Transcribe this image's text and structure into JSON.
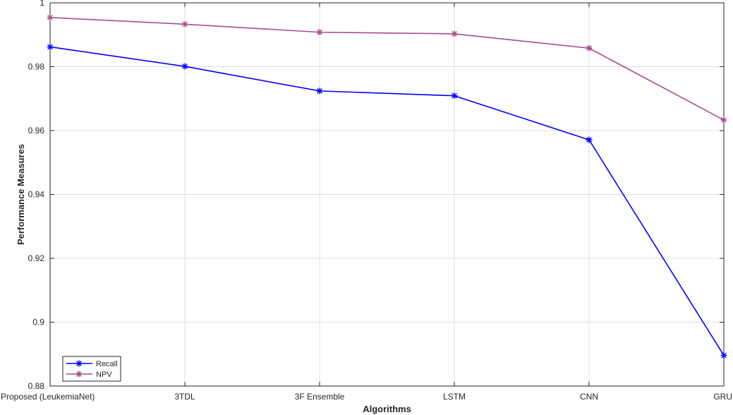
{
  "chart_data": {
    "type": "line",
    "categories": [
      "Proposed (LeukemiaNet)",
      "3TDL",
      "3F Ensemble",
      "LSTM",
      "CNN",
      "GRU"
    ],
    "series": [
      {
        "name": "Recall",
        "values": [
          0.9862,
          0.9801,
          0.9724,
          0.9709,
          0.9571,
          0.8896
        ],
        "color": "#0000ff",
        "marker": "asterisk"
      },
      {
        "name": "NPV",
        "values": [
          0.9954,
          0.9933,
          0.9908,
          0.9903,
          0.9858,
          0.9633
        ],
        "color": "#a64d8c",
        "marker": "asterisk"
      }
    ],
    "title": "",
    "xlabel": "Algorithms",
    "ylabel": "Performance Measures",
    "ylim": [
      0.88,
      1.0
    ],
    "yticks": [
      0.88,
      0.9,
      0.92,
      0.94,
      0.96,
      0.98,
      1
    ],
    "ytick_labels": [
      "0.88",
      "0.9",
      "0.92",
      "0.94",
      "0.96",
      "0.98",
      "1"
    ],
    "grid": true,
    "legend_position": "bottom-left"
  }
}
